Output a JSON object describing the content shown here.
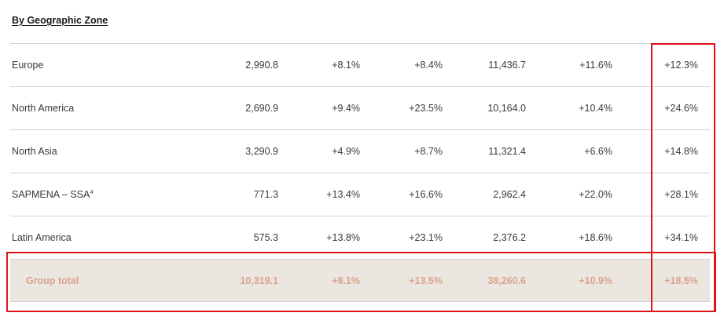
{
  "section_title": "By Geographic Zone",
  "rows": [
    {
      "label": "Europe",
      "label_sup": "",
      "v1": "2,990.8",
      "v2": "+8.1%",
      "v3": "+8.4%",
      "v4": "11,436.7",
      "v5": "+11.6%",
      "v6": "+12.3%"
    },
    {
      "label": "North America",
      "label_sup": "",
      "v1": "2,690.9",
      "v2": "+9.4%",
      "v3": "+23.5%",
      "v4": "10,164.0",
      "v5": "+10.4%",
      "v6": "+24.6%"
    },
    {
      "label": "North Asia",
      "label_sup": "",
      "v1": "3,290.9",
      "v2": "+4.9%",
      "v3": "+8.7%",
      "v4": "11,321.4",
      "v5": "+6.6%",
      "v6": "+14.8%"
    },
    {
      "label": "SAPMENA – SSA",
      "label_sup": "4",
      "v1": "771.3",
      "v2": "+13.4%",
      "v3": "+16.6%",
      "v4": "2,962.4",
      "v5": "+22.0%",
      "v6": "+28.1%"
    },
    {
      "label": "Latin America",
      "label_sup": "",
      "v1": "575.3",
      "v2": "+13.8%",
      "v3": "+23.1%",
      "v4": "2,376.2",
      "v5": "+18.6%",
      "v6": "+34.1%"
    }
  ],
  "total": {
    "label": "Group total",
    "v1": "10,319.1",
    "v2": "+8.1%",
    "v3": "+13.5%",
    "v4": "38,260.6",
    "v5": "+10.9%",
    "v6": "+18.5%"
  },
  "colors": {
    "highlight_border": "#e0131b",
    "total_background": "#ebe6e0",
    "total_text": "#d9a48c"
  }
}
